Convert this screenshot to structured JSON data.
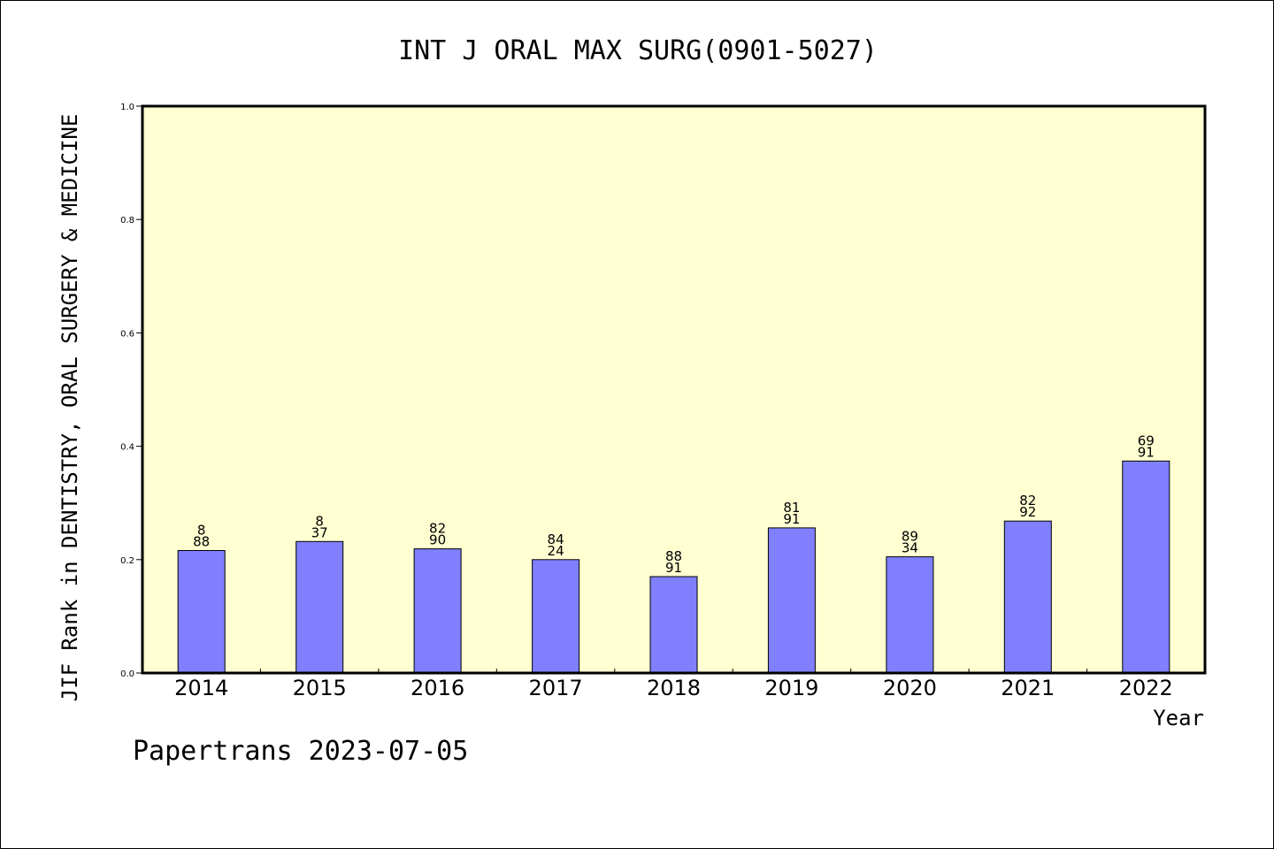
{
  "chart_data": {
    "type": "bar",
    "title": "INT J ORAL MAX SURG(0901-5027)",
    "ylabel": "JIF Rank in DENTISTRY, ORAL SURGERY & MEDICINE",
    "xlabel": "Year",
    "categories": [
      "2014",
      "2015",
      "2016",
      "2017",
      "2018",
      "2019",
      "2020",
      "2021",
      "2022"
    ],
    "values": [
      0.216,
      0.232,
      0.219,
      0.2,
      0.17,
      0.256,
      0.205,
      0.268,
      0.374
    ],
    "bar_labels": [
      [
        "8",
        "88"
      ],
      [
        "8",
        "37"
      ],
      [
        "82",
        "90"
      ],
      [
        "84",
        "24"
      ],
      [
        "88",
        "91"
      ],
      [
        "81",
        "91"
      ],
      [
        "89",
        "34"
      ],
      [
        "82",
        "92"
      ],
      [
        "69",
        "91"
      ]
    ],
    "ylim": [
      0.0,
      1.0
    ],
    "yticks": [
      "0.0",
      "0.2",
      "0.4",
      "0.6",
      "0.8",
      "1.0"
    ],
    "grid": false,
    "colors": {
      "plot_background": "#ffffd2",
      "bar_fill": "#8080ff",
      "bar_stroke": "#000000"
    }
  },
  "footer": {
    "text": "Papertrans 2023-07-05"
  }
}
